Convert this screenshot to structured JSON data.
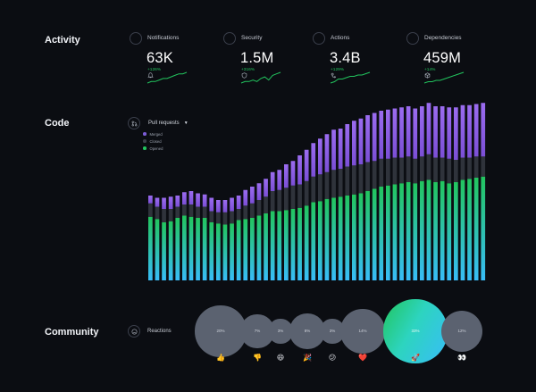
{
  "activity": {
    "title": "Activity",
    "metrics": [
      {
        "label": "Notifications",
        "value": "63K",
        "change": "+126%",
        "icon": "bell-icon",
        "spark": [
          3,
          4,
          4,
          5,
          6,
          6,
          7,
          8,
          9,
          9,
          10
        ]
      },
      {
        "label": "Security",
        "value": "1.5M",
        "change": "+316%",
        "icon": "shield-icon",
        "spark": [
          2,
          3,
          3,
          4,
          3,
          5,
          6,
          4,
          7,
          8,
          9
        ]
      },
      {
        "label": "Actions",
        "value": "3.4B",
        "change": "+129%",
        "icon": "actions-icon",
        "spark": [
          2,
          3,
          5,
          5,
          6,
          7,
          7,
          8,
          8,
          9,
          10
        ]
      },
      {
        "label": "Dependencies",
        "value": "459M",
        "change": "+14%",
        "icon": "package-icon",
        "spark": [
          2,
          3,
          3,
          4,
          4,
          5,
          6,
          7,
          8,
          9,
          10
        ]
      }
    ]
  },
  "code": {
    "title": "Code",
    "pull_requests_label": "Pull requests",
    "legend": [
      {
        "label": "Merged",
        "color": "#7c5cd6"
      },
      {
        "label": "Closed",
        "color": "#3a3f48"
      },
      {
        "label": "Opened",
        "color": "#22c55e"
      }
    ]
  },
  "chart_data": {
    "type": "bar",
    "stacked": true,
    "series": [
      {
        "name": "Opened",
        "values": [
          57,
          55,
          52,
          53,
          56,
          58,
          57,
          56,
          56,
          52,
          51,
          50,
          51,
          54,
          55,
          56,
          58,
          60,
          62,
          62,
          63,
          64,
          65,
          67,
          70,
          71,
          73,
          74,
          75,
          76,
          77,
          78,
          80,
          82,
          84,
          85,
          86,
          87,
          88,
          87,
          89,
          90,
          88,
          89,
          87,
          88,
          90,
          91,
          92,
          93
        ]
      },
      {
        "name": "Closed",
        "values": [
          12,
          11,
          12,
          11,
          10,
          10,
          11,
          10,
          10,
          10,
          10,
          11,
          11,
          10,
          12,
          13,
          14,
          15,
          18,
          19,
          20,
          21,
          21,
          22,
          23,
          24,
          24,
          25,
          25,
          26,
          26,
          26,
          26,
          25,
          25,
          24,
          24,
          23,
          23,
          22,
          22,
          23,
          22,
          21,
          22,
          20,
          20,
          19,
          19,
          18
        ]
      },
      {
        "name": "Merged",
        "values": [
          7,
          8,
          10,
          11,
          10,
          11,
          12,
          12,
          11,
          12,
          11,
          11,
          12,
          12,
          14,
          15,
          15,
          16,
          17,
          18,
          21,
          22,
          26,
          28,
          30,
          32,
          34,
          36,
          36,
          38,
          40,
          41,
          42,
          43,
          43,
          44,
          44,
          45,
          45,
          45,
          45,
          46,
          46,
          46,
          46,
          47,
          47,
          47,
          47,
          48
        ]
      }
    ]
  },
  "community": {
    "title": "Community",
    "reactions_label": "Reactions",
    "bubbles": [
      {
        "percent": "20%",
        "emoji": "👍",
        "emoji_name": "thumbs-up-icon"
      },
      {
        "percent": "7%",
        "emoji": "👎",
        "emoji_name": "thumbs-down-icon"
      },
      {
        "percent": "3%",
        "emoji": "😄",
        "emoji_name": "laugh-icon"
      },
      {
        "percent": "8%",
        "emoji": "🎉",
        "emoji_name": "hooray-icon"
      },
      {
        "percent": "3%",
        "emoji": "😕",
        "emoji_name": "confused-icon"
      },
      {
        "percent": "14%",
        "emoji": "❤️",
        "emoji_name": "heart-icon"
      },
      {
        "percent": "33%",
        "emoji": "🚀",
        "emoji_name": "rocket-icon"
      },
      {
        "percent": "12%",
        "emoji": "👀",
        "emoji_name": "eyes-icon"
      }
    ]
  }
}
